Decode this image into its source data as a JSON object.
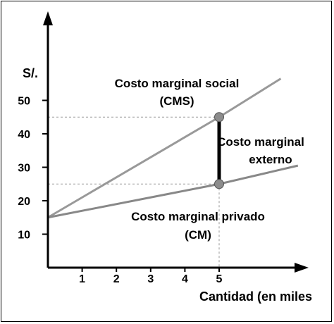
{
  "chart_data": {
    "type": "line",
    "ylabel": "S/.",
    "xlabel": "Cantidad (en miles",
    "x_ticks": [
      1,
      2,
      3,
      4,
      5
    ],
    "y_ticks": [
      10,
      20,
      30,
      40,
      50
    ],
    "xlim": [
      0,
      7.5
    ],
    "ylim": [
      0,
      60
    ],
    "series": [
      {
        "name": "Costo marginal social (CMS)",
        "label_lines": [
          "Costo marginal social",
          "(CMS)"
        ],
        "color": "#999999",
        "x": [
          0,
          5,
          6.8
        ],
        "y": [
          15,
          45,
          56.5
        ]
      },
      {
        "name": "Costo marginal privado (CM)",
        "label_lines": [
          "Costo marginal privado",
          "(CM)"
        ],
        "color": "#888888",
        "x": [
          0,
          5,
          7.3
        ],
        "y": [
          15,
          25,
          30.5
        ]
      }
    ],
    "points": [
      {
        "x": 5,
        "y": 45
      },
      {
        "x": 5,
        "y": 25
      }
    ],
    "external_cost": {
      "label_lines": [
        "Costo marginal",
        "externo"
      ],
      "x": 5,
      "y_low": 25,
      "y_high": 45
    },
    "colors": {
      "axis": "#000000",
      "guide": "#999999",
      "point_fill": "#8c8c8c",
      "segment": "#000000"
    }
  }
}
